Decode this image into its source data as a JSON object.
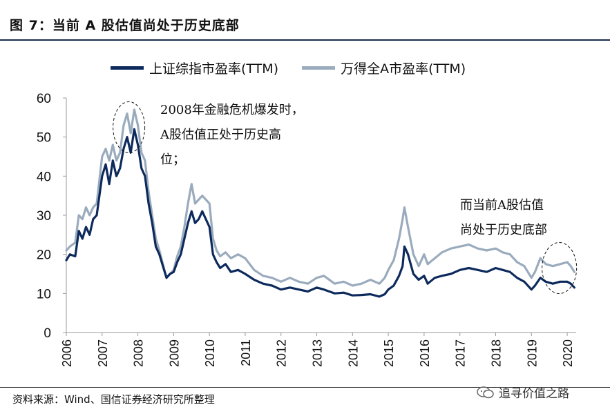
{
  "figure": {
    "title": "图 7：当前 A 股估值尚处于历史底部",
    "source": "资料来源：Wind、国信证券经济研究所整理",
    "watermark": "追寻价值之路"
  },
  "annotations": {
    "a1_line1": "2008年金融危机爆发时，",
    "a1_line2": "A股估值正处于历史高",
    "a1_line3": "位；",
    "a2_line1": "而当前A股估值",
    "a2_line2": "尚处于历史底部"
  },
  "chart_data": {
    "type": "line",
    "title": "图 7：当前 A 股估值尚处于历史底部",
    "xlabel": "",
    "ylabel": "",
    "ylim": [
      0,
      60
    ],
    "yticks": [
      0,
      10,
      20,
      30,
      40,
      50,
      60
    ],
    "xticks": [
      "2006",
      "2007",
      "2008",
      "2009",
      "2010",
      "2011",
      "2012",
      "2013",
      "2014",
      "2015",
      "2016",
      "2017",
      "2018",
      "2019",
      "2020"
    ],
    "xlim": [
      2006.0,
      2020.25
    ],
    "grid": false,
    "legend_position": "top",
    "x": [
      2006.0,
      2006.1,
      2006.25,
      2006.35,
      2006.45,
      2006.55,
      2006.65,
      2006.75,
      2006.85,
      2007.0,
      2007.1,
      2007.2,
      2007.3,
      2007.4,
      2007.5,
      2007.6,
      2007.7,
      2007.8,
      2007.9,
      2008.0,
      2008.1,
      2008.2,
      2008.3,
      2008.4,
      2008.5,
      2008.6,
      2008.7,
      2008.8,
      2008.9,
      2009.0,
      2009.1,
      2009.2,
      2009.3,
      2009.4,
      2009.5,
      2009.6,
      2009.7,
      2009.8,
      2009.9,
      2010.0,
      2010.1,
      2010.2,
      2010.3,
      2010.45,
      2010.6,
      2010.8,
      2011.0,
      2011.25,
      2011.5,
      2011.75,
      2012.0,
      2012.25,
      2012.5,
      2012.75,
      2013.0,
      2013.2,
      2013.5,
      2013.75,
      2014.0,
      2014.25,
      2014.5,
      2014.75,
      2014.9,
      2015.0,
      2015.15,
      2015.3,
      2015.4,
      2015.45,
      2015.55,
      2015.7,
      2015.85,
      2016.0,
      2016.1,
      2016.3,
      2016.5,
      2016.75,
      2017.0,
      2017.25,
      2017.5,
      2017.75,
      2018.0,
      2018.2,
      2018.4,
      2018.6,
      2018.8,
      2019.0,
      2019.1,
      2019.25,
      2019.4,
      2019.6,
      2019.8,
      2020.0,
      2020.1,
      2020.2
    ],
    "series": [
      {
        "name": "上证综指市盈率(TTM)",
        "color": "#0d2a5c",
        "values": [
          18.5,
          20.0,
          19.5,
          26.0,
          24.0,
          27.0,
          25.0,
          29.0,
          30.0,
          40.0,
          43.0,
          38.0,
          44.0,
          40.0,
          42.0,
          47.0,
          50.0,
          46.0,
          52.0,
          48.0,
          42.0,
          40.0,
          33.0,
          28.0,
          22.0,
          20.0,
          17.0,
          14.0,
          15.0,
          15.5,
          18.0,
          20.0,
          24.0,
          28.0,
          31.0,
          28.0,
          29.0,
          31.0,
          29.0,
          27.0,
          20.0,
          18.0,
          16.5,
          17.5,
          15.5,
          16.0,
          15.0,
          13.5,
          12.5,
          12.0,
          11.0,
          11.5,
          11.0,
          10.5,
          11.5,
          11.0,
          10.0,
          10.2,
          9.5,
          9.6,
          9.8,
          9.2,
          9.8,
          11.0,
          12.0,
          14.5,
          17.0,
          22.0,
          20.0,
          15.0,
          13.5,
          14.5,
          12.5,
          14.0,
          14.5,
          15.0,
          16.0,
          16.5,
          16.0,
          15.5,
          16.5,
          16.0,
          15.5,
          14.0,
          13.0,
          11.0,
          12.0,
          14.0,
          13.0,
          12.5,
          13.0,
          13.0,
          12.5,
          11.5
        ]
      },
      {
        "name": "万得全A市盈率(TTM)",
        "color": "#9aabbd",
        "values": [
          21.0,
          22.0,
          23.0,
          30.0,
          29.0,
          32.0,
          30.0,
          32.0,
          33.0,
          45.0,
          47.0,
          44.0,
          48.0,
          44.0,
          46.0,
          53.0,
          56.0,
          51.0,
          57.0,
          53.0,
          46.0,
          44.0,
          36.0,
          30.0,
          24.0,
          21.0,
          17.5,
          14.0,
          15.0,
          16.0,
          19.5,
          22.0,
          27.0,
          33.0,
          38.0,
          33.0,
          34.0,
          35.0,
          34.0,
          33.0,
          24.0,
          21.0,
          19.5,
          20.5,
          19.0,
          20.0,
          19.0,
          16.0,
          14.5,
          14.0,
          13.0,
          14.0,
          13.0,
          12.5,
          14.0,
          14.5,
          12.5,
          13.0,
          12.0,
          12.5,
          13.5,
          12.5,
          14.0,
          16.0,
          18.5,
          24.0,
          29.0,
          32.0,
          27.0,
          20.0,
          17.0,
          20.0,
          17.5,
          19.0,
          20.5,
          21.5,
          22.0,
          22.5,
          21.5,
          21.0,
          21.5,
          20.5,
          20.0,
          18.0,
          17.0,
          14.0,
          15.5,
          19.0,
          17.5,
          17.0,
          17.5,
          18.0,
          17.0,
          15.5
        ]
      }
    ]
  }
}
